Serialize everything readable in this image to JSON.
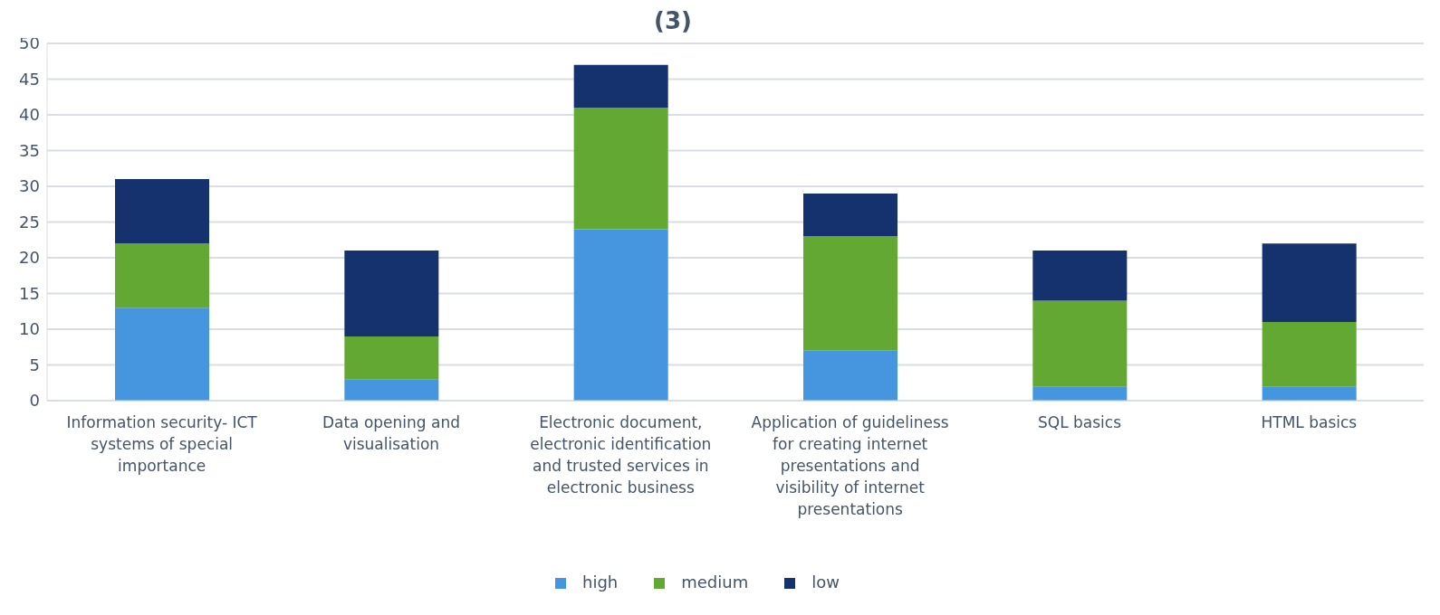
{
  "chart_data": {
    "type": "bar",
    "title": "(3)",
    "stacked": true,
    "categories": [
      "Information security- ICT systems of special importance",
      "Data opening and visualisation",
      "Electronic document, electronic identification and trusted services in electronic business",
      "Application of guideliness for creating internet presentations and visibility of internet presentations",
      "SQL basics",
      "HTML basics"
    ],
    "series": [
      {
        "name": "high",
        "color": "#4596de",
        "values": [
          13,
          3,
          24,
          7,
          2,
          2
        ]
      },
      {
        "name": "medium",
        "color": "#62a832",
        "values": [
          9,
          6,
          17,
          16,
          12,
          9
        ]
      },
      {
        "name": "low",
        "color": "#16326e",
        "values": [
          9,
          12,
          6,
          6,
          7,
          11
        ]
      }
    ],
    "ylim": [
      0,
      50
    ],
    "yticks": [
      0,
      5,
      10,
      15,
      20,
      25,
      30,
      35,
      40,
      45,
      50
    ],
    "grid": "y",
    "legend": "bottom"
  }
}
